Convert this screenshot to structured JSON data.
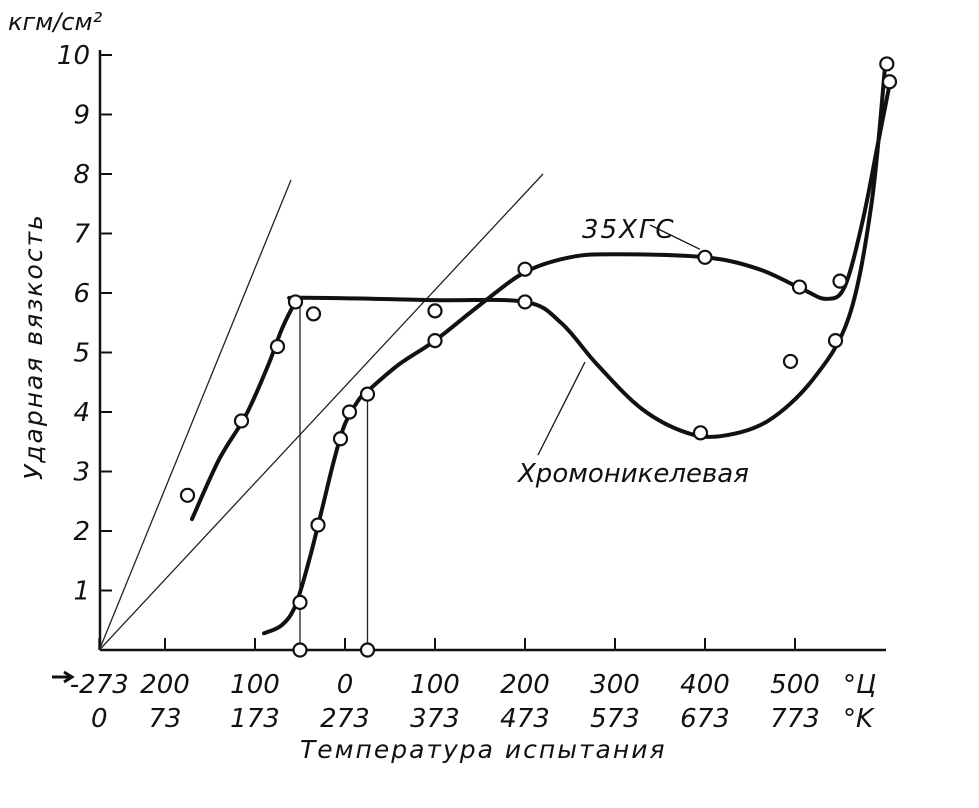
{
  "chart_data": {
    "type": "line",
    "y_unit": "кгм/см²",
    "ylabel": "Ударная вязкость",
    "xlabel": "Температура испытания",
    "ylim": [
      0,
      10
    ],
    "xlim": [
      -273,
      560
    ],
    "y_ticks": [
      "1",
      "2",
      "3",
      "4",
      "5",
      "6",
      "7",
      "8",
      "9",
      "10"
    ],
    "x_ticks_celsius": [
      {
        "t": -273,
        "label": "-273"
      },
      {
        "t": -200,
        "label": "200"
      },
      {
        "t": -100,
        "label": "100"
      },
      {
        "t": 0,
        "label": "0"
      },
      {
        "t": 100,
        "label": "100"
      },
      {
        "t": 200,
        "label": "200"
      },
      {
        "t": 300,
        "label": "300"
      },
      {
        "t": 400,
        "label": "400"
      },
      {
        "t": 500,
        "label": "500"
      }
    ],
    "x_ticks_kelvin": [
      {
        "t": -273,
        "label": "0"
      },
      {
        "t": -200,
        "label": "73"
      },
      {
        "t": -100,
        "label": "173"
      },
      {
        "t": 0,
        "label": "273"
      },
      {
        "t": 100,
        "label": "373"
      },
      {
        "t": 200,
        "label": "473"
      },
      {
        "t": 300,
        "label": "573"
      },
      {
        "t": 400,
        "label": "673"
      },
      {
        "t": 500,
        "label": "773"
      }
    ],
    "unit_celsius": "°Ц",
    "unit_kelvin": "°K",
    "series": [
      {
        "name": "35ХГС",
        "points": [
          [
            -50,
            0.8
          ],
          [
            -30,
            2.1
          ],
          [
            -5,
            3.55
          ],
          [
            5,
            4.0
          ],
          [
            25,
            4.3
          ],
          [
            100,
            5.2
          ],
          [
            200,
            6.4
          ],
          [
            400,
            6.6
          ],
          [
            505,
            6.1
          ],
          [
            550,
            6.2
          ],
          [
            605,
            9.55
          ]
        ],
        "curve": [
          [
            -90,
            0.28
          ],
          [
            -70,
            0.42
          ],
          [
            -55,
            0.75
          ],
          [
            -40,
            1.5
          ],
          [
            -25,
            2.4
          ],
          [
            -12,
            3.2
          ],
          [
            0,
            3.8
          ],
          [
            15,
            4.2
          ],
          [
            25,
            4.35
          ],
          [
            60,
            4.8
          ],
          [
            100,
            5.2
          ],
          [
            150,
            5.8
          ],
          [
            200,
            6.35
          ],
          [
            250,
            6.6
          ],
          [
            300,
            6.65
          ],
          [
            400,
            6.6
          ],
          [
            460,
            6.4
          ],
          [
            510,
            6.05
          ],
          [
            535,
            5.9
          ],
          [
            555,
            6.1
          ],
          [
            575,
            7.2
          ],
          [
            592,
            8.5
          ],
          [
            605,
            9.5
          ]
        ]
      },
      {
        "name": "Хромоникелевая",
        "points": [
          [
            -175,
            2.6
          ],
          [
            -115,
            3.85
          ],
          [
            -75,
            5.1
          ],
          [
            -55,
            5.85
          ],
          [
            -35,
            5.65
          ],
          [
            100,
            5.7
          ],
          [
            200,
            5.85
          ],
          [
            395,
            3.65
          ],
          [
            495,
            4.85
          ],
          [
            545,
            5.2
          ],
          [
            602,
            9.85
          ]
        ],
        "curve": [
          [
            -170,
            2.2
          ],
          [
            -140,
            3.2
          ],
          [
            -110,
            3.95
          ],
          [
            -85,
            4.8
          ],
          [
            -70,
            5.4
          ],
          [
            -55,
            5.85
          ],
          [
            -50,
            5.92
          ],
          [
            100,
            5.88
          ],
          [
            200,
            5.85
          ],
          [
            240,
            5.5
          ],
          [
            280,
            4.8
          ],
          [
            330,
            4.05
          ],
          [
            380,
            3.65
          ],
          [
            420,
            3.6
          ],
          [
            470,
            3.85
          ],
          [
            520,
            4.55
          ],
          [
            560,
            5.6
          ],
          [
            585,
            7.5
          ],
          [
            600,
            9.8
          ]
        ]
      }
    ],
    "annotations": [
      {
        "text": "35ХГС",
        "target_series": "35ХГС"
      },
      {
        "text": "Хромоникелевая",
        "target_series": "Хромоникелевая"
      }
    ],
    "tangent_lines": [
      {
        "from": [
          -273,
          0
        ],
        "to": [
          -60,
          7.9
        ]
      },
      {
        "from": [
          -273,
          0
        ],
        "to": [
          220,
          8.0
        ]
      }
    ],
    "drop_lines": [
      {
        "t": -50,
        "from": 5.85,
        "to": 0
      },
      {
        "t": 25,
        "from": 4.35,
        "to": 0
      }
    ],
    "zero_markers": [
      [
        -50,
        0
      ],
      [
        25,
        0
      ]
    ]
  }
}
